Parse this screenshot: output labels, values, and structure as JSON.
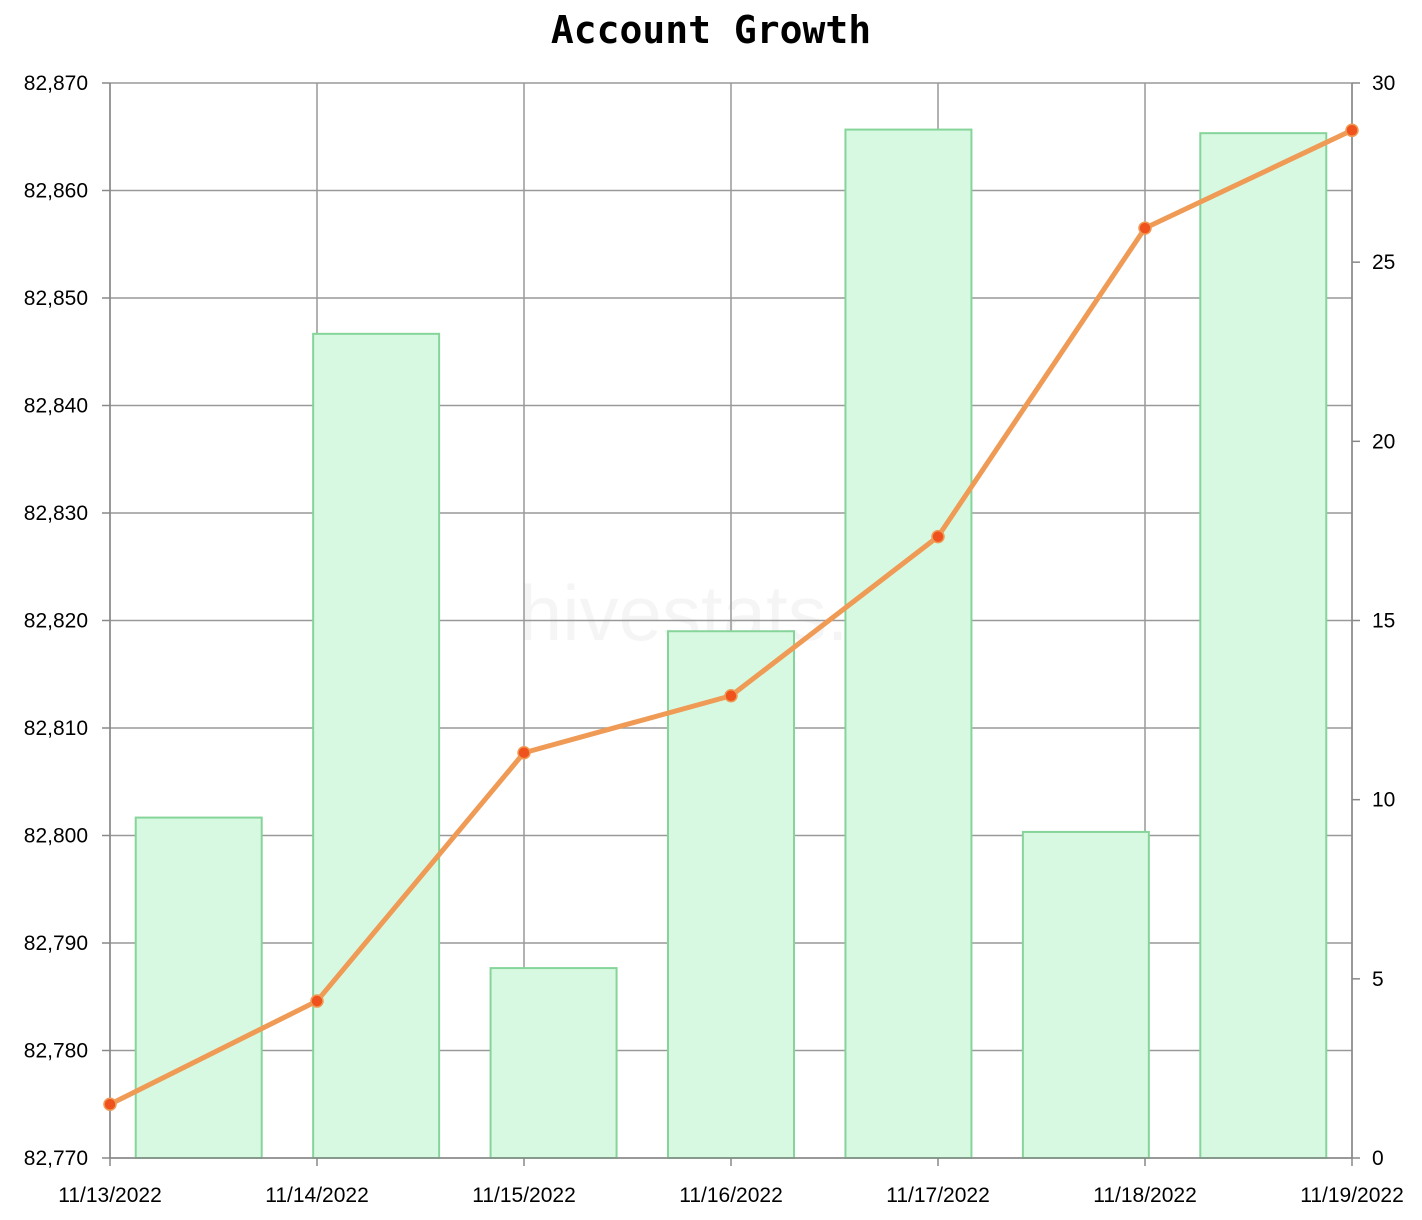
{
  "chart_data": {
    "type": "bar+line",
    "title": "Account Growth",
    "watermark": "hivestats.io",
    "categories": [
      "11/13/2022",
      "11/14/2022",
      "11/15/2022",
      "11/16/2022",
      "11/17/2022",
      "11/18/2022",
      "11/19/2022"
    ],
    "series": [
      {
        "type": "line",
        "axis": "left",
        "values": [
          82775,
          82784.6,
          82807.7,
          82813,
          82827.8,
          82856.5,
          82865.6
        ]
      },
      {
        "type": "bar",
        "axis": "right",
        "values": [
          9.5,
          23,
          5.3,
          14.7,
          28.7,
          9.1,
          28.6
        ]
      }
    ],
    "y_left": {
      "min": 82770,
      "max": 82870,
      "ticks": [
        "82,770",
        "82,780",
        "82,790",
        "82,800",
        "82,810",
        "82,820",
        "82,830",
        "82,840",
        "82,850",
        "82,860",
        "82,870"
      ]
    },
    "y_right": {
      "min": 0,
      "max": 30,
      "ticks": [
        "0",
        "5",
        "10",
        "15",
        "20",
        "25",
        "30"
      ]
    },
    "grid": true,
    "colors": {
      "line": "#ef9a55",
      "point": "#f0521e",
      "bar_fill": "#d8f9e1",
      "bar_stroke": "#85d49a",
      "grid": "#999999",
      "axis": "#888888"
    }
  }
}
